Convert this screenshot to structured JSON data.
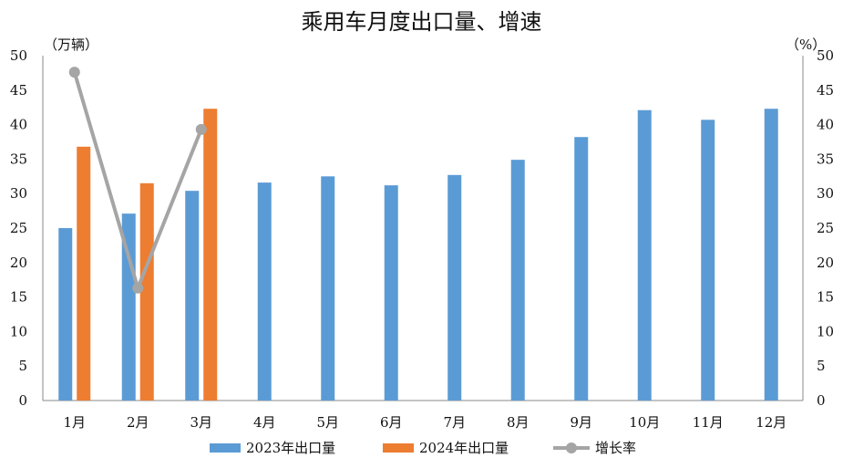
{
  "title": "乘用车月度出口量、增速",
  "left_unit": "（万辆）",
  "right_unit": "（%）",
  "chart_data": {
    "type": "bar",
    "categories": [
      "1月",
      "2月",
      "3月",
      "4月",
      "5月",
      "6月",
      "7月",
      "8月",
      "9月",
      "10月",
      "11月",
      "12月"
    ],
    "y_ticks": [
      "0",
      "5",
      "10",
      "15",
      "20",
      "25",
      "30",
      "35",
      "40",
      "45",
      "50"
    ],
    "ylim": [
      0,
      50
    ],
    "y2lim": [
      0,
      50
    ],
    "grid": false,
    "legend_position": "bottom",
    "series": [
      {
        "name": "2023年出口量",
        "kind": "bar",
        "color": "#5b9bd5",
        "values": [
          25.0,
          27.1,
          30.4,
          31.6,
          32.5,
          31.2,
          32.7,
          34.9,
          38.2,
          42.1,
          40.7,
          42.3
        ]
      },
      {
        "name": "2024年出口量",
        "kind": "bar",
        "color": "#ed7d31",
        "values": [
          36.8,
          31.5,
          42.3,
          null,
          null,
          null,
          null,
          null,
          null,
          null,
          null,
          null
        ]
      },
      {
        "name": "增长率",
        "kind": "line",
        "axis": "right",
        "color": "#a5a5a5",
        "values": [
          47.6,
          16.3,
          39.3,
          null,
          null,
          null,
          null,
          null,
          null,
          null,
          null,
          null
        ]
      }
    ]
  }
}
